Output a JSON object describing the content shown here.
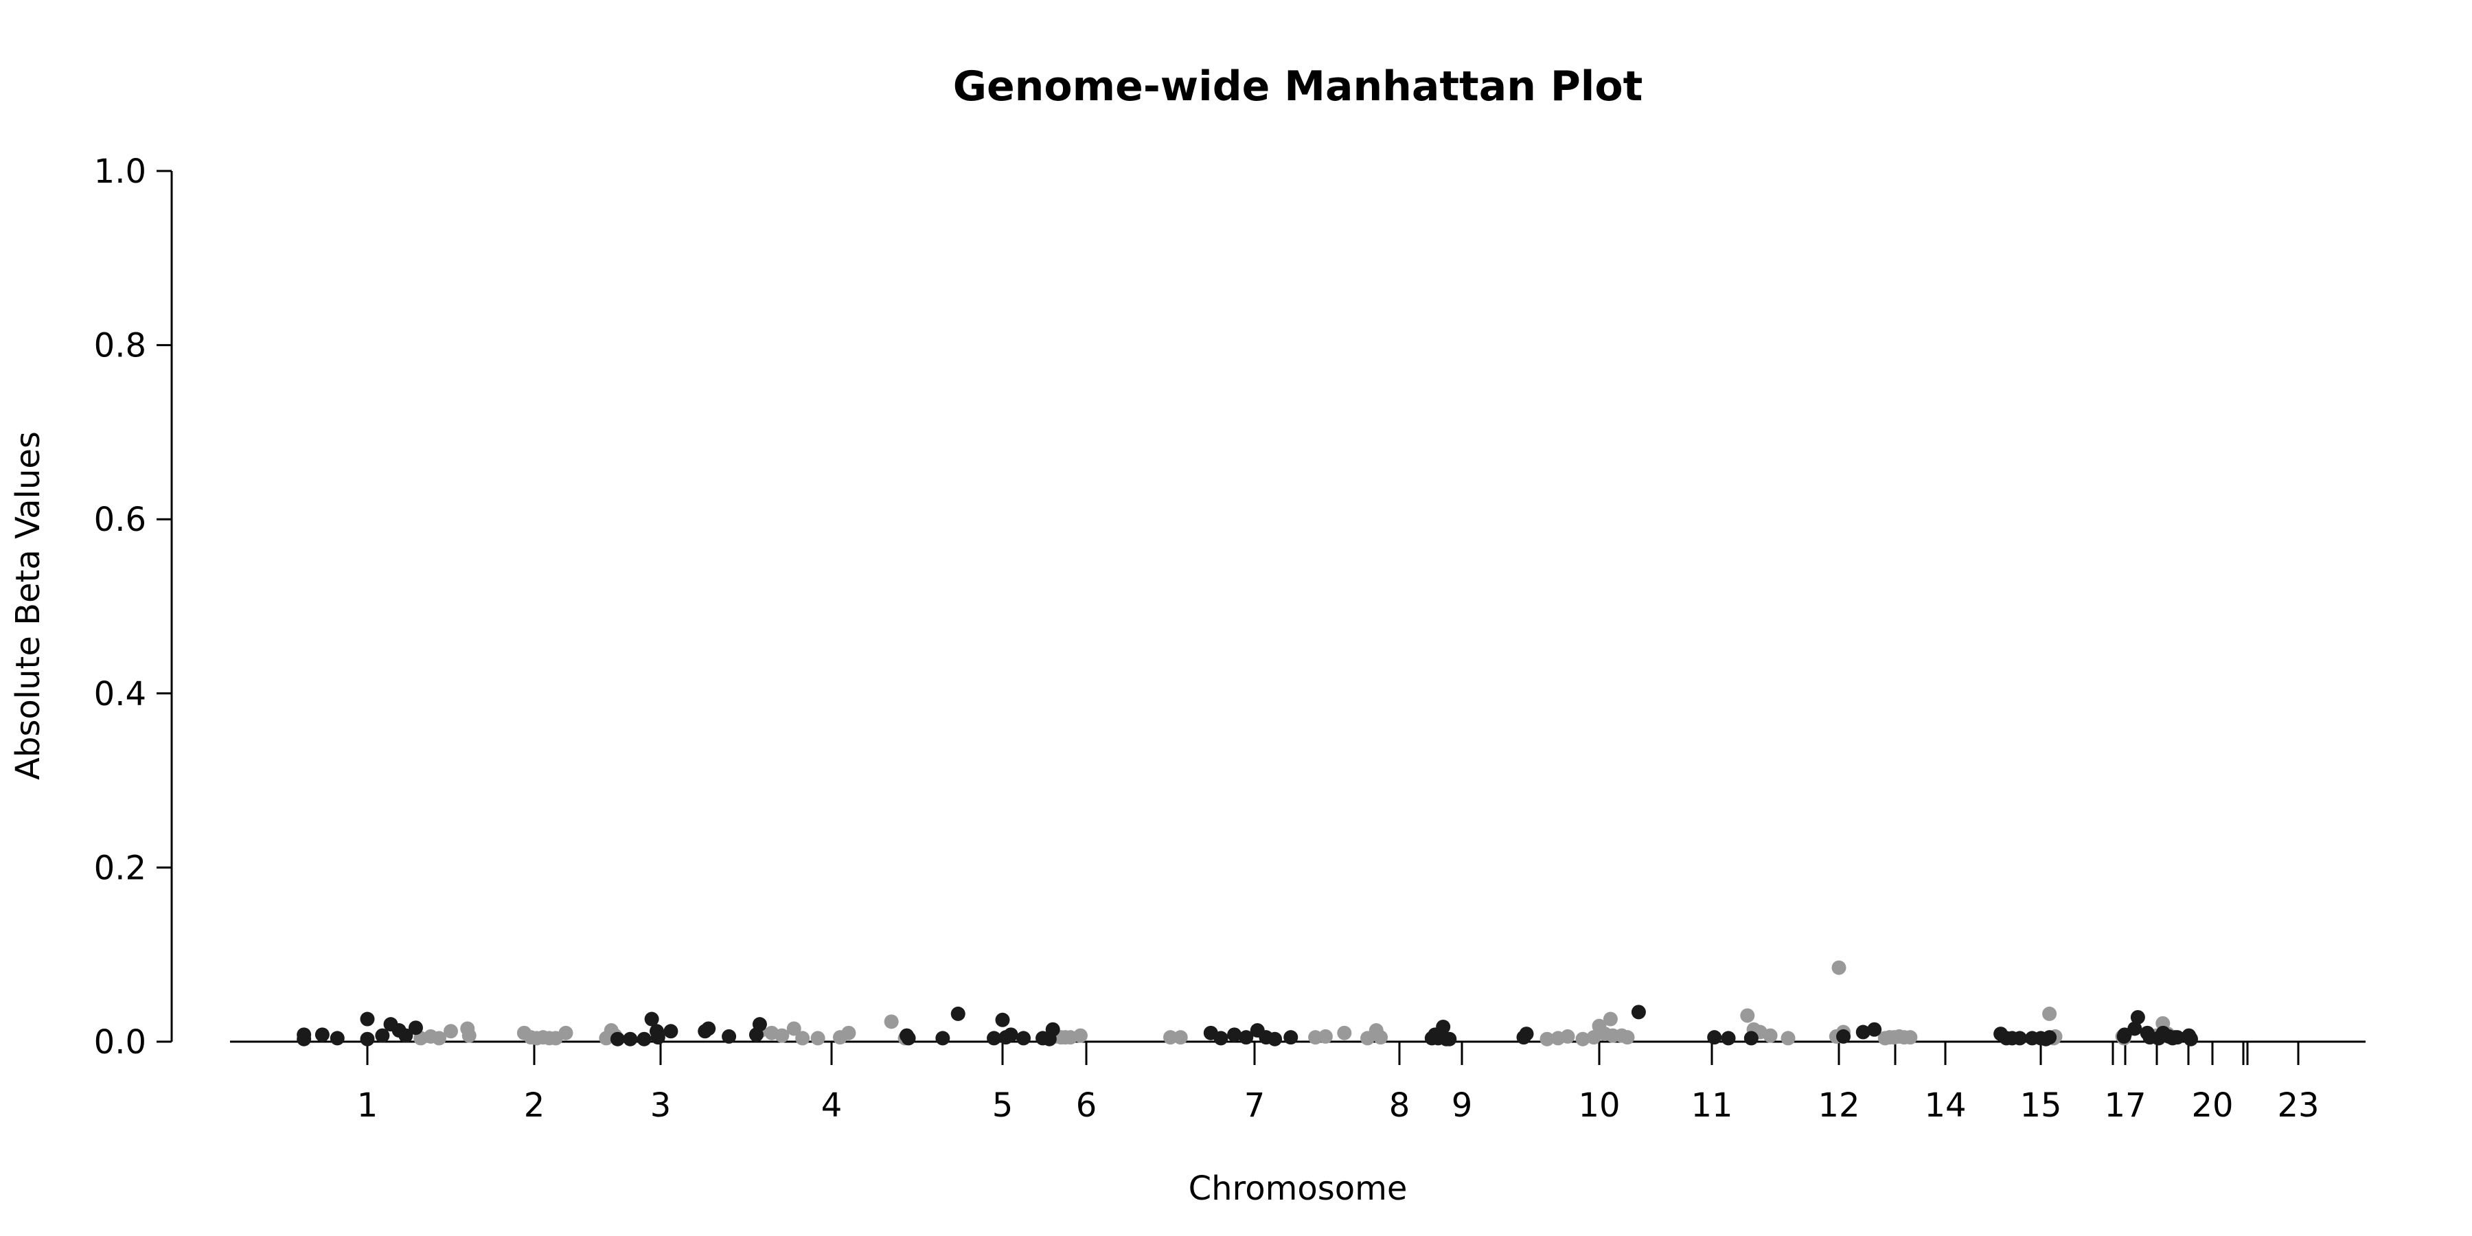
{
  "chart_data": {
    "type": "scatter",
    "title": "Genome-wide Manhattan Plot",
    "xlabel": "Chromosome",
    "ylabel": "Absolute Beta Values",
    "ylim": [
      0,
      1
    ],
    "yticks": [
      "0.0",
      "0.2",
      "0.4",
      "0.6",
      "0.8",
      "1.0"
    ],
    "grid": false,
    "legend": "none",
    "colors": {
      "dark": "#1a1a1a",
      "light": "#999999"
    },
    "chromosomes": [
      {
        "label": "1",
        "x": 1
      },
      {
        "label": "2",
        "x": 2
      },
      {
        "label": "3",
        "x": 3
      },
      {
        "label": "4",
        "x": 4
      },
      {
        "label": "5",
        "x": 5
      },
      {
        "label": "6",
        "x": 6
      },
      {
        "label": "7",
        "x": 7
      },
      {
        "label": "8",
        "x": 8
      },
      {
        "label": "9",
        "x": 9
      },
      {
        "label": "10",
        "x": 10
      },
      {
        "label": "11",
        "x": 11
      },
      {
        "label": "12",
        "x": 12
      },
      {
        "label": "",
        "x": 13
      },
      {
        "label": "14",
        "x": 14
      },
      {
        "label": "15",
        "x": 15
      },
      {
        "label": "",
        "x": 16
      },
      {
        "label": "17",
        "x": 17
      },
      {
        "label": "",
        "x": 18
      },
      {
        "label": "",
        "x": 19
      },
      {
        "label": "20",
        "x": 20
      },
      {
        "label": "",
        "x": 21
      },
      {
        "label": "",
        "x": 22
      },
      {
        "label": "23",
        "x": 23
      }
    ],
    "points_dark": [
      [
        0.62,
        0.008
      ],
      [
        0.62,
        0.003
      ],
      [
        0.73,
        0.008
      ],
      [
        0.82,
        0.004
      ],
      [
        1,
        0.026
      ],
      [
        1,
        0.003
      ],
      [
        1.09,
        0.007
      ],
      [
        1.14,
        0.02
      ],
      [
        1.19,
        0.013
      ],
      [
        1.23,
        0.007
      ],
      [
        1.29,
        0.016
      ],
      [
        2.66,
        0.003
      ],
      [
        2.76,
        0.003
      ],
      [
        2.87,
        0.003
      ],
      [
        2.93,
        0.026
      ],
      [
        2.97,
        0.012
      ],
      [
        3.06,
        0.012
      ],
      [
        2.98,
        0.005
      ],
      [
        3.26,
        0.012
      ],
      [
        3.28,
        0.015
      ],
      [
        3.4,
        0.006
      ],
      [
        3.58,
        0.02
      ],
      [
        3.56,
        0.008
      ],
      [
        4.44,
        0.007
      ],
      [
        4.45,
        0.004
      ],
      [
        4.65,
        0.004
      ],
      [
        4.74,
        0.032
      ],
      [
        5,
        0.025
      ],
      [
        4.95,
        0.004
      ],
      [
        5.04,
        0.005
      ],
      [
        5.1,
        0.008
      ],
      [
        5.25,
        0.004
      ],
      [
        5.48,
        0.004
      ],
      [
        5.6,
        0.014
      ],
      [
        5.56,
        0.003
      ],
      [
        6.74,
        0.01
      ],
      [
        6.8,
        0.004
      ],
      [
        6.88,
        0.008
      ],
      [
        6.95,
        0.005
      ],
      [
        7.02,
        0.013
      ],
      [
        7.08,
        0.005
      ],
      [
        7.14,
        0.003
      ],
      [
        7.25,
        0.005
      ],
      [
        8.52,
        0.004
      ],
      [
        8.57,
        0.008
      ],
      [
        8.62,
        0.004
      ],
      [
        8.7,
        0.017
      ],
      [
        8.75,
        0.003
      ],
      [
        8.8,
        0.003
      ],
      [
        9.45,
        0.005
      ],
      [
        9.47,
        0.009
      ],
      [
        10.35,
        0.034
      ],
      [
        11.02,
        0.005
      ],
      [
        11.13,
        0.004
      ],
      [
        11.31,
        0.004
      ],
      [
        12.08,
        0.006
      ],
      [
        12.43,
        0.011
      ],
      [
        12.63,
        0.014
      ],
      [
        14.58,
        0.009
      ],
      [
        14.64,
        0.004
      ],
      [
        14.7,
        0.004
      ],
      [
        14.78,
        0.004
      ],
      [
        14.91,
        0.004
      ],
      [
        15.0,
        0.004
      ],
      [
        15.07,
        0.003
      ],
      [
        15.12,
        0.005
      ],
      [
        16.9,
        0.006
      ],
      [
        16.95,
        0.008
      ],
      [
        17.3,
        0.015
      ],
      [
        17.4,
        0.028
      ],
      [
        17.7,
        0.01
      ],
      [
        17.78,
        0.005
      ],
      [
        18.05,
        0.004
      ],
      [
        18.2,
        0.01
      ],
      [
        18.38,
        0.006
      ],
      [
        18.5,
        0.004
      ],
      [
        18.58,
        0.005
      ],
      [
        18.65,
        0.005
      ],
      [
        19.02,
        0.007
      ],
      [
        19.08,
        0.004
      ],
      [
        19.1,
        0.003
      ]
    ],
    "points_light": [
      [
        1.32,
        0.004
      ],
      [
        1.38,
        0.006
      ],
      [
        1.43,
        0.004
      ],
      [
        1.5,
        0.012
      ],
      [
        1.6,
        0.015
      ],
      [
        1.61,
        0.007
      ],
      [
        1.94,
        0.01
      ],
      [
        1.98,
        0.005
      ],
      [
        2.02,
        0.004
      ],
      [
        2.07,
        0.005
      ],
      [
        2.12,
        0.004
      ],
      [
        2.17,
        0.004
      ],
      [
        2.25,
        0.01
      ],
      [
        2.57,
        0.004
      ],
      [
        2.61,
        0.013
      ],
      [
        2.64,
        0.007
      ],
      [
        3.58,
        0.012
      ],
      [
        3.65,
        0.01
      ],
      [
        3.71,
        0.007
      ],
      [
        3.78,
        0.015
      ],
      [
        3.83,
        0.004
      ],
      [
        3.92,
        0.004
      ],
      [
        4.05,
        0.005
      ],
      [
        4.1,
        0.01
      ],
      [
        4.35,
        0.023
      ],
      [
        4.43,
        0.004
      ],
      [
        5.63,
        0.006
      ],
      [
        5.7,
        0.005
      ],
      [
        5.75,
        0.005
      ],
      [
        5.81,
        0.005
      ],
      [
        5.93,
        0.007
      ],
      [
        6.5,
        0.005
      ],
      [
        6.56,
        0.005
      ],
      [
        7.42,
        0.005
      ],
      [
        7.49,
        0.006
      ],
      [
        7.62,
        0.01
      ],
      [
        7.78,
        0.004
      ],
      [
        7.84,
        0.013
      ],
      [
        7.87,
        0.005
      ],
      [
        9.62,
        0.003
      ],
      [
        9.7,
        0.004
      ],
      [
        9.77,
        0.006
      ],
      [
        9.88,
        0.003
      ],
      [
        9.96,
        0.005
      ],
      [
        10.0,
        0.018
      ],
      [
        10.05,
        0.009
      ],
      [
        10.1,
        0.026
      ],
      [
        10.12,
        0.007
      ],
      [
        10.2,
        0.007
      ],
      [
        10.25,
        0.005
      ],
      [
        11.28,
        0.03
      ],
      [
        11.33,
        0.014
      ],
      [
        11.38,
        0.011
      ],
      [
        11.46,
        0.007
      ],
      [
        11.6,
        0.004
      ],
      [
        12.0,
        0.085
      ],
      [
        12.08,
        0.011
      ],
      [
        11.98,
        0.006
      ],
      [
        12.82,
        0.004
      ],
      [
        12.9,
        0.005
      ],
      [
        12.98,
        0.005
      ],
      [
        13.08,
        0.006
      ],
      [
        13.18,
        0.005
      ],
      [
        13.3,
        0.005
      ],
      [
        15.12,
        0.032
      ],
      [
        15.18,
        0.004
      ],
      [
        15.2,
        0.006
      ],
      [
        16.78,
        0.006
      ],
      [
        16.9,
        0.004
      ],
      [
        18.0,
        0.007
      ],
      [
        18.07,
        0.004
      ],
      [
        18.13,
        0.006
      ],
      [
        18.19,
        0.021
      ],
      [
        18.3,
        0.007
      ],
      [
        18.34,
        0.009
      ]
    ]
  }
}
